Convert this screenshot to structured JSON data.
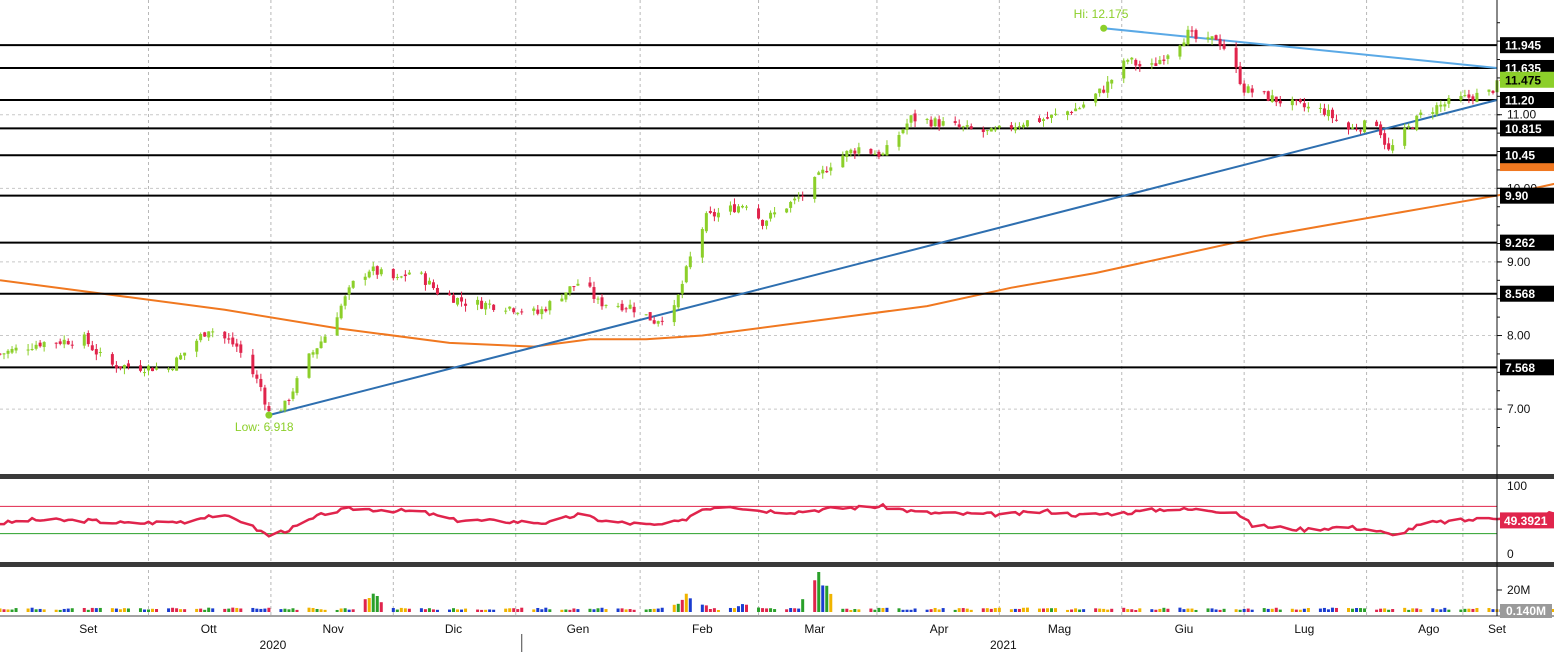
{
  "chart_data": [
    {
      "type": "candlestick",
      "panel": "price",
      "x": {
        "start": "2020-08-24",
        "end": "2021-09-01",
        "month_ticks": [
          {
            "label": "Set",
            "date": "2020-09-15"
          },
          {
            "label": "Ott",
            "date": "2020-10-15"
          },
          {
            "label": "Nov",
            "date": "2020-11-15"
          },
          {
            "label": "Dic",
            "date": "2020-12-15"
          },
          {
            "label": "Gen",
            "date": "2021-01-15"
          },
          {
            "label": "Feb",
            "date": "2021-02-15"
          },
          {
            "label": "Mar",
            "date": "2021-03-15"
          },
          {
            "label": "Apr",
            "date": "2021-04-15"
          },
          {
            "label": "Mag",
            "date": "2021-05-15"
          },
          {
            "label": "Giu",
            "date": "2021-06-15"
          },
          {
            "label": "Lug",
            "date": "2021-07-15"
          },
          {
            "label": "Ago",
            "date": "2021-08-15"
          },
          {
            "label": "Set",
            "date": "2021-09-01"
          }
        ],
        "years": [
          {
            "label": "2020",
            "date": "2020-10-31"
          },
          {
            "label": "2021",
            "date": "2021-05-01"
          }
        ],
        "year_divider": "2021-01-01"
      },
      "y_ticks": [
        7.0,
        8.0,
        9.0,
        10.0,
        11.0
      ],
      "ylim": [
        6.2,
        12.45
      ],
      "grid": true,
      "colors": {
        "up": "#8ccf2a",
        "down": "#e0244c",
        "ma": "#f07820",
        "trend": "#2e6fb0",
        "resistance_trend": "#5aa9e6",
        "level": "#000000",
        "annotation": "#8ccf2a"
      },
      "horizontal_levels": [
        "11.945",
        "11.635",
        "11.20",
        "10.815",
        "10.45",
        "9.90",
        "9.262",
        "8.568",
        "7.568"
      ],
      "tags": [
        {
          "label": "11.945",
          "value": 11.945,
          "bg": "#000000",
          "fg": "#ffffff"
        },
        {
          "label": "11.635",
          "value": 11.635,
          "bg": "#000000",
          "fg": "#ffffff"
        },
        {
          "label": "11.475",
          "value": 11.475,
          "bg": "#8ccf2a",
          "fg": "#000000"
        },
        {
          "label": "11.20",
          "value": 11.2,
          "bg": "#000000",
          "fg": "#ffffff"
        },
        {
          "label": "10.815",
          "value": 10.815,
          "bg": "#000000",
          "fg": "#ffffff"
        },
        {
          "label": "10.45",
          "value": 10.45,
          "bg": "#000000",
          "fg": "#ffffff"
        },
        {
          "label": "9.90",
          "value": 9.9,
          "bg": "#000000",
          "fg": "#ffffff"
        },
        {
          "label": "9.262",
          "value": 9.262,
          "bg": "#000000",
          "fg": "#ffffff"
        },
        {
          "label": "8.568",
          "value": 8.568,
          "bg": "#000000",
          "fg": "#ffffff"
        },
        {
          "label": "7.568",
          "value": 7.568,
          "bg": "#000000",
          "fg": "#ffffff"
        }
      ],
      "annotations": [
        {
          "text": "Hi: 12.175",
          "date": "2021-05-26",
          "value": 12.175
        },
        {
          "text": "Low: 6.918",
          "date": "2020-10-30",
          "value": 6.918
        }
      ],
      "trendlines": [
        {
          "name": "support",
          "from": {
            "date": "2020-10-30",
            "value": 6.918
          },
          "to": {
            "date": "2021-09-01",
            "value": 11.2
          }
        },
        {
          "name": "resistance",
          "from": {
            "date": "2021-05-26",
            "value": 12.175
          },
          "to": {
            "date": "2021-09-01",
            "value": 11.635
          }
        }
      ],
      "close_path": [
        [
          "2020-08-24",
          7.75
        ],
        [
          "2020-09-03",
          7.9
        ],
        [
          "2020-09-14",
          7.95
        ],
        [
          "2020-09-20",
          7.6
        ],
        [
          "2020-10-05",
          7.55
        ],
        [
          "2020-10-15",
          8.1
        ],
        [
          "2020-10-22",
          7.85
        ],
        [
          "2020-10-28",
          7.3
        ],
        [
          "2020-10-30",
          6.95
        ],
        [
          "2020-11-03",
          7.05
        ],
        [
          "2020-11-09",
          7.7
        ],
        [
          "2020-11-13",
          8.0
        ],
        [
          "2020-11-20",
          8.7
        ],
        [
          "2020-11-24",
          8.9
        ],
        [
          "2020-12-01",
          8.75
        ],
        [
          "2020-12-05",
          8.9
        ],
        [
          "2020-12-11",
          8.6
        ],
        [
          "2020-12-18",
          8.45
        ],
        [
          "2020-12-28",
          8.4
        ],
        [
          "2021-01-05",
          8.3
        ],
        [
          "2021-01-12",
          8.6
        ],
        [
          "2021-01-16",
          8.75
        ],
        [
          "2021-01-20",
          8.45
        ],
        [
          "2021-01-28",
          8.4
        ],
        [
          "2021-02-03",
          8.2
        ],
        [
          "2021-02-08",
          8.35
        ],
        [
          "2021-02-12",
          9.05
        ],
        [
          "2021-02-16",
          9.6
        ],
        [
          "2021-02-26",
          9.8
        ],
        [
          "2021-03-02",
          9.55
        ],
        [
          "2021-03-12",
          9.9
        ],
        [
          "2021-03-20",
          10.4
        ],
        [
          "2021-03-26",
          10.55
        ],
        [
          "2021-04-01",
          10.45
        ],
        [
          "2021-04-08",
          10.95
        ],
        [
          "2021-04-14",
          10.9
        ],
        [
          "2021-04-22",
          10.8
        ],
        [
          "2021-04-28",
          10.75
        ],
        [
          "2021-05-06",
          10.9
        ],
        [
          "2021-05-12",
          10.95
        ],
        [
          "2021-05-20",
          11.1
        ],
        [
          "2021-05-26",
          11.35
        ],
        [
          "2021-06-01",
          11.75
        ],
        [
          "2021-06-06",
          11.6
        ],
        [
          "2021-06-12",
          11.9
        ],
        [
          "2021-06-16",
          12.1
        ],
        [
          "2021-06-20",
          11.95
        ],
        [
          "2021-06-23",
          12.05
        ],
        [
          "2021-06-26",
          11.85
        ],
        [
          "2021-06-30",
          11.35
        ],
        [
          "2021-07-08",
          11.2
        ],
        [
          "2021-07-15",
          11.1
        ],
        [
          "2021-07-20",
          11.05
        ],
        [
          "2021-07-26",
          10.8
        ],
        [
          "2021-08-02",
          10.9
        ],
        [
          "2021-08-05",
          10.5
        ],
        [
          "2021-08-08",
          10.7
        ],
        [
          "2021-08-14",
          11.05
        ],
        [
          "2021-08-22",
          11.2
        ],
        [
          "2021-08-30",
          11.3
        ],
        [
          "2021-09-05",
          11.6
        ],
        [
          "2021-09-12",
          11.7
        ],
        [
          "2021-09-18",
          11.6
        ],
        [
          "2021-09-26",
          11.5
        ],
        [
          "2021-10-02",
          11.55
        ],
        [
          "2021-10-08",
          11.45
        ],
        [
          "2021-10-12",
          11.5
        ]
      ],
      "moving_average": [
        [
          "2020-08-24",
          8.75
        ],
        [
          "2020-09-21",
          8.55
        ],
        [
          "2020-10-19",
          8.35
        ],
        [
          "2020-11-16",
          8.1
        ],
        [
          "2020-12-14",
          7.9
        ],
        [
          "2021-01-04",
          7.85
        ],
        [
          "2021-01-18",
          7.95
        ],
        [
          "2021-02-01",
          7.95
        ],
        [
          "2021-02-15",
          8.0
        ],
        [
          "2021-03-01",
          8.1
        ],
        [
          "2021-03-22",
          8.25
        ],
        [
          "2021-04-12",
          8.4
        ],
        [
          "2021-05-03",
          8.65
        ],
        [
          "2021-05-24",
          8.85
        ],
        [
          "2021-06-14",
          9.1
        ],
        [
          "2021-07-05",
          9.35
        ],
        [
          "2021-07-26",
          9.55
        ],
        [
          "2021-08-16",
          9.75
        ],
        [
          "2021-09-06",
          9.95
        ],
        [
          "2021-09-27",
          10.2
        ],
        [
          "2021-10-12",
          10.35
        ]
      ]
    },
    {
      "type": "line",
      "panel": "rsi",
      "ylim": [
        0,
        100
      ],
      "y_ticks": [
        0,
        100
      ],
      "levels": [
        70,
        30
      ],
      "last_value_label": "49.3921",
      "color": "#e0244c",
      "series": [
        [
          "2020-08-24",
          45
        ],
        [
          "2020-09-01",
          50
        ],
        [
          "2020-09-15",
          49
        ],
        [
          "2020-09-25",
          45
        ],
        [
          "2020-10-10",
          48
        ],
        [
          "2020-10-15",
          57
        ],
        [
          "2020-10-22",
          52
        ],
        [
          "2020-10-30",
          27
        ],
        [
          "2020-11-05",
          38
        ],
        [
          "2020-11-13",
          60
        ],
        [
          "2020-11-20",
          67
        ],
        [
          "2020-11-30",
          64
        ],
        [
          "2020-12-07",
          62
        ],
        [
          "2020-12-15",
          50
        ],
        [
          "2020-12-28",
          48
        ],
        [
          "2021-01-08",
          46
        ],
        [
          "2021-01-15",
          58
        ],
        [
          "2021-01-22",
          48
        ],
        [
          "2021-02-03",
          42
        ],
        [
          "2021-02-10",
          48
        ],
        [
          "2021-02-14",
          65
        ],
        [
          "2021-02-21",
          72
        ],
        [
          "2021-03-01",
          64
        ],
        [
          "2021-03-10",
          62
        ],
        [
          "2021-03-20",
          67
        ],
        [
          "2021-04-01",
          70
        ],
        [
          "2021-04-10",
          61
        ],
        [
          "2021-04-20",
          59
        ],
        [
          "2021-05-02",
          58
        ],
        [
          "2021-05-12",
          63
        ],
        [
          "2021-05-20",
          57
        ],
        [
          "2021-06-01",
          61
        ],
        [
          "2021-06-10",
          66
        ],
        [
          "2021-06-20",
          65
        ],
        [
          "2021-06-28",
          62
        ],
        [
          "2021-07-02",
          42
        ],
        [
          "2021-07-15",
          36
        ],
        [
          "2021-07-25",
          40
        ],
        [
          "2021-08-01",
          36
        ],
        [
          "2021-08-06",
          27
        ],
        [
          "2021-08-14",
          45
        ],
        [
          "2021-08-25",
          50
        ],
        [
          "2021-09-05",
          56
        ],
        [
          "2021-09-15",
          60
        ],
        [
          "2021-09-25",
          52
        ],
        [
          "2021-10-05",
          54
        ],
        [
          "2021-10-12",
          49
        ]
      ]
    },
    {
      "type": "bar",
      "panel": "volume",
      "y_ticks": [
        "20M"
      ],
      "last_value_label": "0.140M",
      "colors": {
        "base": "#e0244c",
        "up": "#2aa02a",
        "alt": "#1a3cd0",
        "flat": "#f0b400"
      },
      "spikes": [
        [
          "2020-11-25",
          0.5
        ],
        [
          "2021-02-12",
          0.55
        ],
        [
          "2021-03-16",
          1.0
        ],
        [
          "2021-02-26",
          0.3
        ]
      ]
    }
  ]
}
